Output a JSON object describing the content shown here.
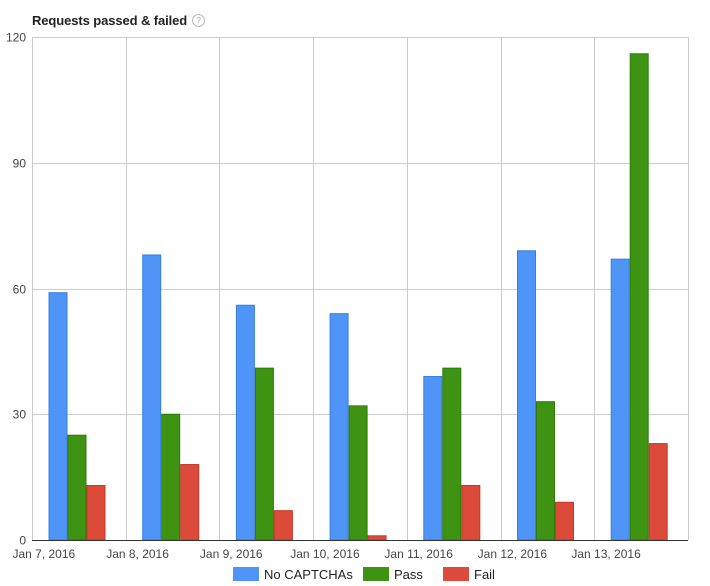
{
  "header": {
    "title": "Requests passed & failed",
    "help_icon": "question-mark-icon",
    "help_glyph": "?"
  },
  "chart_data": {
    "type": "bar",
    "title": "Requests passed & failed",
    "xlabel": "",
    "ylabel": "",
    "ylim": [
      0,
      120
    ],
    "yticks": [
      0,
      30,
      60,
      90,
      120
    ],
    "grid": true,
    "legend_position": "bottom",
    "categories": [
      "Jan 7, 2016",
      "Jan 8, 2016",
      "Jan 9, 2016",
      "Jan 10, 2016",
      "Jan 11, 2016",
      "Jan 12, 2016",
      "Jan 13, 2016"
    ],
    "series": [
      {
        "name": "No CAPTCHAs",
        "color": "#4f94f7",
        "stroke": "#3a7de0",
        "values": [
          59,
          68,
          56,
          54,
          39,
          69,
          67
        ]
      },
      {
        "name": "Pass",
        "color": "#3e9412",
        "stroke": "#2f7a0b",
        "values": [
          25,
          30,
          41,
          32,
          41,
          33,
          116
        ]
      },
      {
        "name": "Fail",
        "color": "#dc4a3a",
        "stroke": "#c23a2b",
        "values": [
          13,
          18,
          7,
          1,
          13,
          9,
          23
        ]
      }
    ]
  }
}
